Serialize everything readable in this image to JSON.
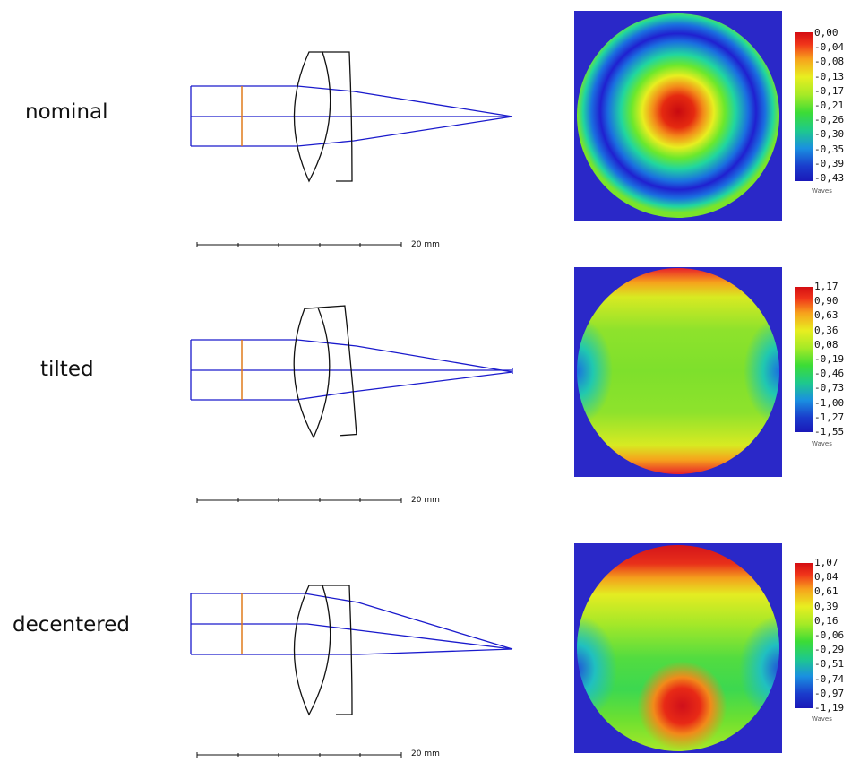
{
  "rows": [
    {
      "label": "nominal",
      "scale_label": "20 mm",
      "colorbar_ticks": [
        "0,00",
        "-0,04",
        "-0,08",
        "-0,13",
        "-0,17",
        "-0,21",
        "-0,26",
        "-0,30",
        "-0,35",
        "-0,39",
        "-0,43"
      ],
      "unit": "Waves"
    },
    {
      "label": "tilted",
      "scale_label": "20 mm",
      "colorbar_ticks": [
        "1,17",
        "0,90",
        "0,63",
        "0,36",
        "0,08",
        "-0,19",
        "-0,46",
        "-0,73",
        "-1,00",
        "-1,27",
        "-1,55"
      ],
      "unit": "Waves"
    },
    {
      "label": "decentered",
      "scale_label": "20 mm",
      "colorbar_ticks": [
        "1,07",
        "0,84",
        "0,61",
        "0,39",
        "0,16",
        "-0,06",
        "-0,29",
        "-0,51",
        "-0,74",
        "-0,97",
        "-1,19"
      ],
      "unit": "Waves"
    }
  ],
  "colors": {
    "ray": "#1a1acc",
    "stop": "#e07b1a",
    "lens": "#111111",
    "map_background": "#2a28c8"
  }
}
